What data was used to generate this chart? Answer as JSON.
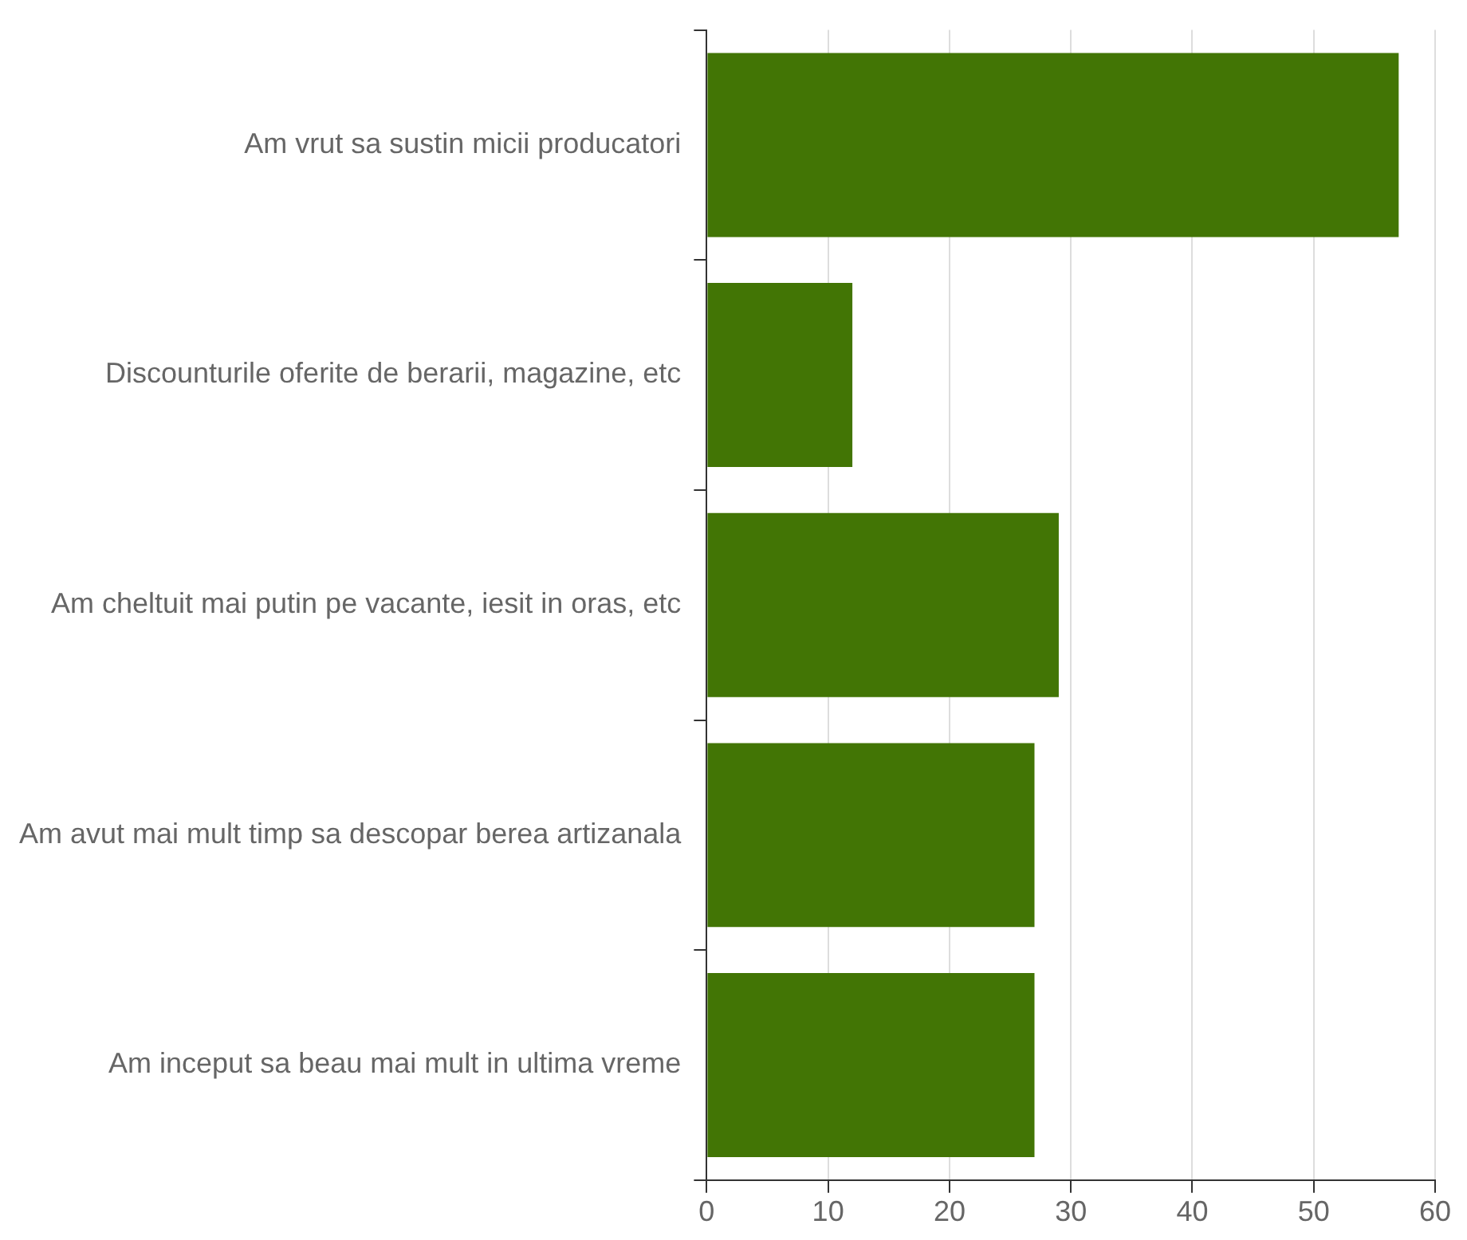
{
  "chart_data": {
    "type": "bar",
    "orientation": "horizontal",
    "categories": [
      "Am vrut sa sustin micii producatori",
      "Discounturile oferite de berarii, magazine, etc",
      "Am cheltuit mai putin pe vacante, iesit in oras, etc",
      "Am avut mai mult timp sa descopar berea artizanala",
      "Am inceput sa beau mai mult in ultima vreme"
    ],
    "values": [
      57,
      12,
      29,
      27,
      27
    ],
    "color": "#427505",
    "xlim": [
      0,
      60
    ],
    "xticks": [
      0,
      10,
      20,
      30,
      40,
      50,
      60
    ],
    "grid": "x",
    "legend": false
  }
}
